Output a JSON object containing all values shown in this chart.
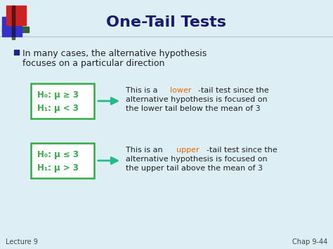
{
  "title": "One-Tail Tests",
  "title_color": "#1a1a6e",
  "bg_color": "#ddeef5",
  "header_bg": "#ddeef5",
  "bullet_text_line1": "In many cases, the alternative hypothesis",
  "bullet_text_line2": "focuses on a particular direction",
  "box1_lines": [
    "H₀: μ ≥ 3",
    "H₁: μ < 3"
  ],
  "box2_lines": [
    "H₀: μ ≤ 3",
    "H₁: μ > 3"
  ],
  "box_color": "#33aa44",
  "arrow_color": "#22bb88",
  "footer_left": "Lecture 9",
  "footer_right": "Chap 9-44",
  "bullet_color": "#222288",
  "line_color": "#bbcccc",
  "corner_red": "#cc2222",
  "corner_blue": "#3333cc",
  "corner_green": "#225522",
  "corner_yellow": "#aaaa00",
  "text_color": "#222222",
  "lower_color": "#ee6600",
  "upper_color": "#ee6600"
}
